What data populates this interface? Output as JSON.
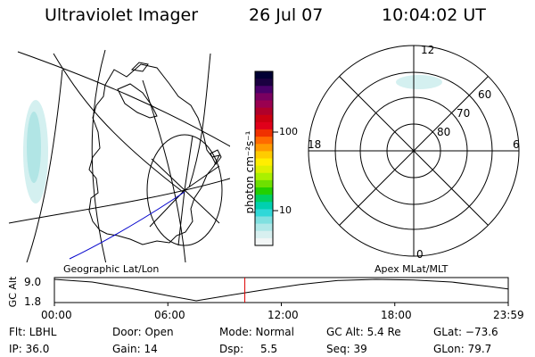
{
  "header": {
    "instrument": "Ultraviolet Imager",
    "date": "26 Jul 07",
    "time": "10:04:02 UT"
  },
  "geo_panel": {
    "caption": "Geographic Lat/Lon"
  },
  "colorbar": {
    "unit_label": "photon cm⁻²s⁻¹",
    "ticks": [
      "100",
      "10"
    ],
    "colors": [
      "#000033",
      "#1a0040",
      "#4a006a",
      "#7a0060",
      "#9a0050",
      "#b0002a",
      "#cc0010",
      "#e0001a",
      "#f03000",
      "#ff6a00",
      "#ff9a00",
      "#ffcc00",
      "#ffee00",
      "#ddf000",
      "#aaf000",
      "#6ee000",
      "#22d000",
      "#00d060",
      "#00d0b0",
      "#30d8d8",
      "#80e0e0",
      "#b0e8e8",
      "#d8f0f0",
      "#f2f6f6"
    ]
  },
  "polar_panel": {
    "caption": "Apex MLat/MLT",
    "mlt_labels": {
      "top": "12",
      "left": "18",
      "right": "6",
      "bottom": "0"
    },
    "lat_labels": [
      "60",
      "70",
      "80"
    ]
  },
  "altitude_plot": {
    "ylabel": "GC Alt",
    "y_top": "9.0",
    "y_bottom": "1.8",
    "x_ticks": [
      "00:00",
      "06:00",
      "12:00",
      "18:00",
      "23:59"
    ],
    "marker_color": "#dd0000"
  },
  "chart_data": {
    "type": "line",
    "xlabel": "",
    "ylabel": "GC Alt",
    "x_hours": [
      0,
      2,
      4,
      6,
      7.5,
      9,
      11,
      13,
      15,
      17,
      19,
      21,
      23,
      23.98
    ],
    "alt_re": [
      9.0,
      8.1,
      6.0,
      3.5,
      1.8,
      3.4,
      5.4,
      7.3,
      8.6,
      9.0,
      8.8,
      8.1,
      6.6,
      5.8
    ],
    "ylim": [
      1.8,
      9.0
    ],
    "current_hour": 10.07
  },
  "footer": {
    "filter": "Flt: LBHL",
    "door": "Door: Open",
    "mode": "Mode: Normal",
    "gc_alt": "GC Alt: 5.4 Re",
    "glat": "GLat: −73.6",
    "ip": "IP: 36.0",
    "gain": "Gain: 14",
    "dsp_label": "Dsp:",
    "dsp_value": "5.5",
    "seq": "Seq: 39",
    "glon": "GLon: 79.7"
  }
}
